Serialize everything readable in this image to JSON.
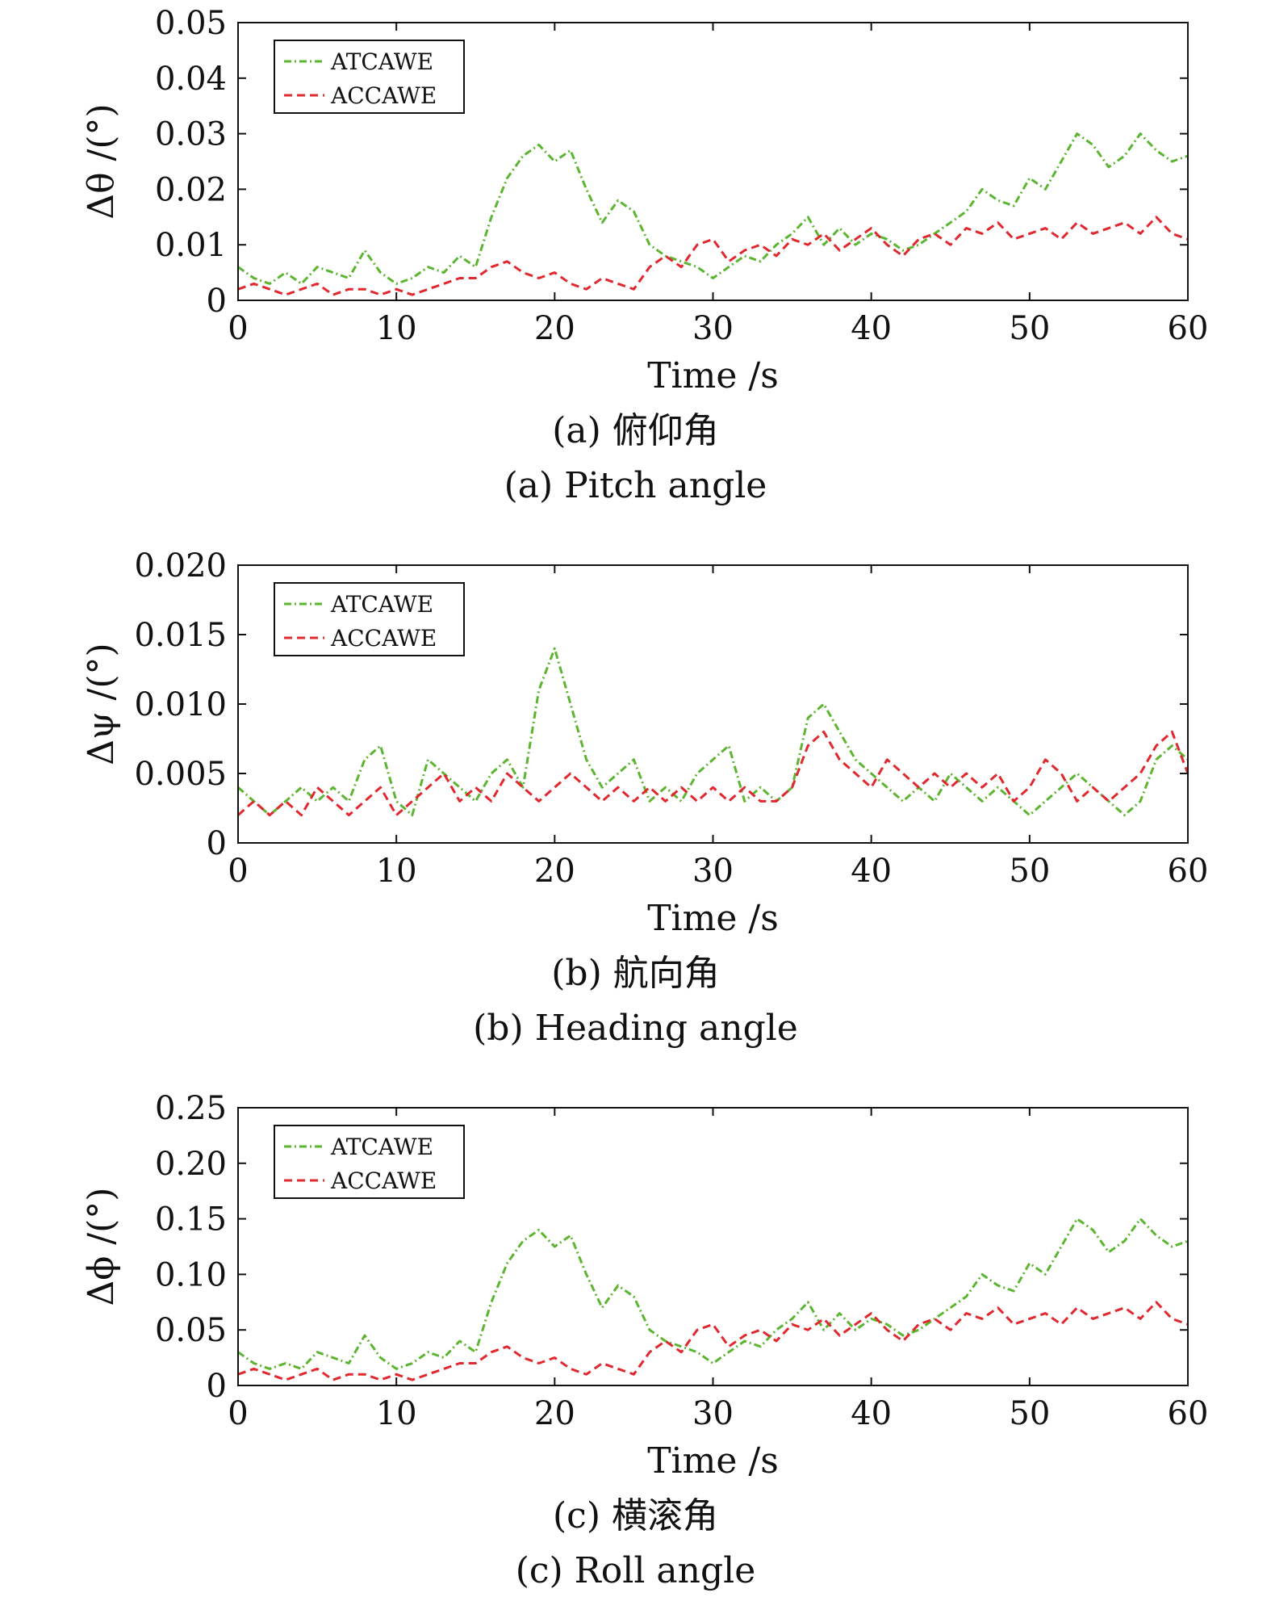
{
  "chart_data": [
    {
      "type": "line",
      "ylabel": "Δθ /(°)",
      "xlabel": "Time /s",
      "caption_cn": "(a) 俯仰角",
      "caption_en": "(a) Pitch angle",
      "xlim": [
        0,
        60
      ],
      "ylim": [
        0,
        0.05
      ],
      "x_ticks": [
        "0",
        "10",
        "20",
        "30",
        "40",
        "50",
        "60"
      ],
      "y_ticks": [
        "0",
        "0.01",
        "0.02",
        "0.03",
        "0.04",
        "0.05"
      ],
      "legend_position": "top-left",
      "grid": false,
      "x": [
        0,
        1,
        2,
        3,
        4,
        5,
        6,
        7,
        8,
        9,
        10,
        11,
        12,
        13,
        14,
        15,
        16,
        17,
        18,
        19,
        20,
        21,
        22,
        23,
        24,
        25,
        26,
        27,
        28,
        29,
        30,
        31,
        32,
        33,
        34,
        35,
        36,
        37,
        38,
        39,
        40,
        41,
        42,
        43,
        44,
        45,
        46,
        47,
        48,
        49,
        50,
        51,
        52,
        53,
        54,
        55,
        56,
        57,
        58,
        59,
        60
      ],
      "series": [
        {
          "name": "ATCAWE",
          "color": "#5cb531",
          "dash": "dashdot",
          "values": [
            0.006,
            0.004,
            0.003,
            0.005,
            0.003,
            0.006,
            0.005,
            0.004,
            0.009,
            0.005,
            0.003,
            0.004,
            0.006,
            0.005,
            0.008,
            0.006,
            0.015,
            0.022,
            0.026,
            0.028,
            0.025,
            0.027,
            0.02,
            0.014,
            0.018,
            0.016,
            0.01,
            0.008,
            0.007,
            0.006,
            0.004,
            0.006,
            0.008,
            0.007,
            0.01,
            0.012,
            0.015,
            0.01,
            0.013,
            0.01,
            0.012,
            0.011,
            0.009,
            0.01,
            0.012,
            0.014,
            0.016,
            0.02,
            0.018,
            0.017,
            0.022,
            0.02,
            0.025,
            0.03,
            0.028,
            0.024,
            0.026,
            0.03,
            0.027,
            0.025,
            0.026
          ]
        },
        {
          "name": "ACCAWE",
          "color": "#e0282e",
          "dash": "dash",
          "values": [
            0.002,
            0.003,
            0.002,
            0.001,
            0.002,
            0.003,
            0.001,
            0.002,
            0.002,
            0.001,
            0.002,
            0.001,
            0.002,
            0.003,
            0.004,
            0.004,
            0.006,
            0.007,
            0.005,
            0.004,
            0.005,
            0.003,
            0.002,
            0.004,
            0.003,
            0.002,
            0.006,
            0.008,
            0.006,
            0.01,
            0.011,
            0.007,
            0.009,
            0.01,
            0.008,
            0.011,
            0.01,
            0.012,
            0.009,
            0.011,
            0.013,
            0.01,
            0.008,
            0.011,
            0.012,
            0.01,
            0.013,
            0.012,
            0.014,
            0.011,
            0.012,
            0.013,
            0.011,
            0.014,
            0.012,
            0.013,
            0.014,
            0.012,
            0.015,
            0.012,
            0.011
          ]
        }
      ]
    },
    {
      "type": "line",
      "ylabel": "Δψ /(°)",
      "xlabel": "Time /s",
      "caption_cn": "(b) 航向角",
      "caption_en": "(b) Heading angle",
      "xlim": [
        0,
        60
      ],
      "ylim": [
        0,
        0.02
      ],
      "x_ticks": [
        "0",
        "10",
        "20",
        "30",
        "40",
        "50",
        "60"
      ],
      "y_ticks": [
        "0",
        "0.005",
        "0.010",
        "0.015",
        "0.020"
      ],
      "legend_position": "top-left",
      "grid": false,
      "x": [
        0,
        1,
        2,
        3,
        4,
        5,
        6,
        7,
        8,
        9,
        10,
        11,
        12,
        13,
        14,
        15,
        16,
        17,
        18,
        19,
        20,
        21,
        22,
        23,
        24,
        25,
        26,
        27,
        28,
        29,
        30,
        31,
        32,
        33,
        34,
        35,
        36,
        37,
        38,
        39,
        40,
        41,
        42,
        43,
        44,
        45,
        46,
        47,
        48,
        49,
        50,
        51,
        52,
        53,
        54,
        55,
        56,
        57,
        58,
        59,
        60
      ],
      "series": [
        {
          "name": "ATCAWE",
          "color": "#5cb531",
          "dash": "dashdot",
          "values": [
            0.004,
            0.003,
            0.002,
            0.003,
            0.004,
            0.003,
            0.004,
            0.003,
            0.006,
            0.007,
            0.003,
            0.002,
            0.006,
            0.005,
            0.004,
            0.003,
            0.005,
            0.006,
            0.004,
            0.011,
            0.014,
            0.01,
            0.006,
            0.004,
            0.005,
            0.006,
            0.003,
            0.004,
            0.003,
            0.005,
            0.006,
            0.007,
            0.003,
            0.004,
            0.003,
            0.004,
            0.009,
            0.01,
            0.008,
            0.006,
            0.005,
            0.004,
            0.003,
            0.004,
            0.003,
            0.005,
            0.004,
            0.003,
            0.004,
            0.003,
            0.002,
            0.003,
            0.004,
            0.005,
            0.004,
            0.003,
            0.002,
            0.003,
            0.006,
            0.007,
            0.006
          ]
        },
        {
          "name": "ACCAWE",
          "color": "#e0282e",
          "dash": "dash",
          "values": [
            0.002,
            0.003,
            0.002,
            0.003,
            0.002,
            0.004,
            0.003,
            0.002,
            0.003,
            0.004,
            0.002,
            0.003,
            0.004,
            0.005,
            0.003,
            0.004,
            0.003,
            0.005,
            0.004,
            0.003,
            0.004,
            0.005,
            0.004,
            0.003,
            0.004,
            0.003,
            0.004,
            0.003,
            0.004,
            0.003,
            0.004,
            0.003,
            0.004,
            0.003,
            0.003,
            0.004,
            0.007,
            0.008,
            0.006,
            0.005,
            0.004,
            0.006,
            0.005,
            0.004,
            0.005,
            0.004,
            0.005,
            0.004,
            0.005,
            0.003,
            0.004,
            0.006,
            0.005,
            0.003,
            0.004,
            0.003,
            0.004,
            0.005,
            0.007,
            0.008,
            0.005
          ]
        }
      ]
    },
    {
      "type": "line",
      "ylabel": "Δϕ /(°)",
      "xlabel": "Time /s",
      "caption_cn": "(c) 横滚角",
      "caption_en": "(c) Roll angle",
      "xlim": [
        0,
        60
      ],
      "ylim": [
        0,
        0.25
      ],
      "x_ticks": [
        "0",
        "10",
        "20",
        "30",
        "40",
        "50",
        "60"
      ],
      "y_ticks": [
        "0",
        "0.05",
        "0.10",
        "0.15",
        "0.20",
        "0.25"
      ],
      "legend_position": "top-left",
      "grid": false,
      "x": [
        0,
        1,
        2,
        3,
        4,
        5,
        6,
        7,
        8,
        9,
        10,
        11,
        12,
        13,
        14,
        15,
        16,
        17,
        18,
        19,
        20,
        21,
        22,
        23,
        24,
        25,
        26,
        27,
        28,
        29,
        30,
        31,
        32,
        33,
        34,
        35,
        36,
        37,
        38,
        39,
        40,
        41,
        42,
        43,
        44,
        45,
        46,
        47,
        48,
        49,
        50,
        51,
        52,
        53,
        54,
        55,
        56,
        57,
        58,
        59,
        60
      ],
      "series": [
        {
          "name": "ATCAWE",
          "color": "#5cb531",
          "dash": "dashdot",
          "values": [
            0.03,
            0.02,
            0.015,
            0.02,
            0.015,
            0.03,
            0.025,
            0.02,
            0.045,
            0.025,
            0.015,
            0.02,
            0.03,
            0.025,
            0.04,
            0.03,
            0.075,
            0.11,
            0.13,
            0.14,
            0.125,
            0.135,
            0.1,
            0.07,
            0.09,
            0.08,
            0.05,
            0.04,
            0.035,
            0.03,
            0.02,
            0.03,
            0.04,
            0.035,
            0.05,
            0.06,
            0.075,
            0.05,
            0.065,
            0.05,
            0.06,
            0.055,
            0.045,
            0.05,
            0.06,
            0.07,
            0.08,
            0.1,
            0.09,
            0.085,
            0.11,
            0.1,
            0.125,
            0.15,
            0.14,
            0.12,
            0.13,
            0.15,
            0.135,
            0.125,
            0.13
          ]
        },
        {
          "name": "ACCAWE",
          "color": "#e0282e",
          "dash": "dash",
          "values": [
            0.01,
            0.015,
            0.01,
            0.005,
            0.01,
            0.015,
            0.005,
            0.01,
            0.01,
            0.005,
            0.01,
            0.005,
            0.01,
            0.015,
            0.02,
            0.02,
            0.03,
            0.035,
            0.025,
            0.02,
            0.025,
            0.015,
            0.01,
            0.02,
            0.015,
            0.01,
            0.03,
            0.04,
            0.03,
            0.05,
            0.055,
            0.035,
            0.045,
            0.05,
            0.04,
            0.055,
            0.05,
            0.06,
            0.045,
            0.055,
            0.065,
            0.05,
            0.04,
            0.055,
            0.06,
            0.05,
            0.065,
            0.06,
            0.07,
            0.055,
            0.06,
            0.065,
            0.055,
            0.07,
            0.06,
            0.065,
            0.07,
            0.06,
            0.075,
            0.06,
            0.055
          ]
        }
      ]
    }
  ]
}
